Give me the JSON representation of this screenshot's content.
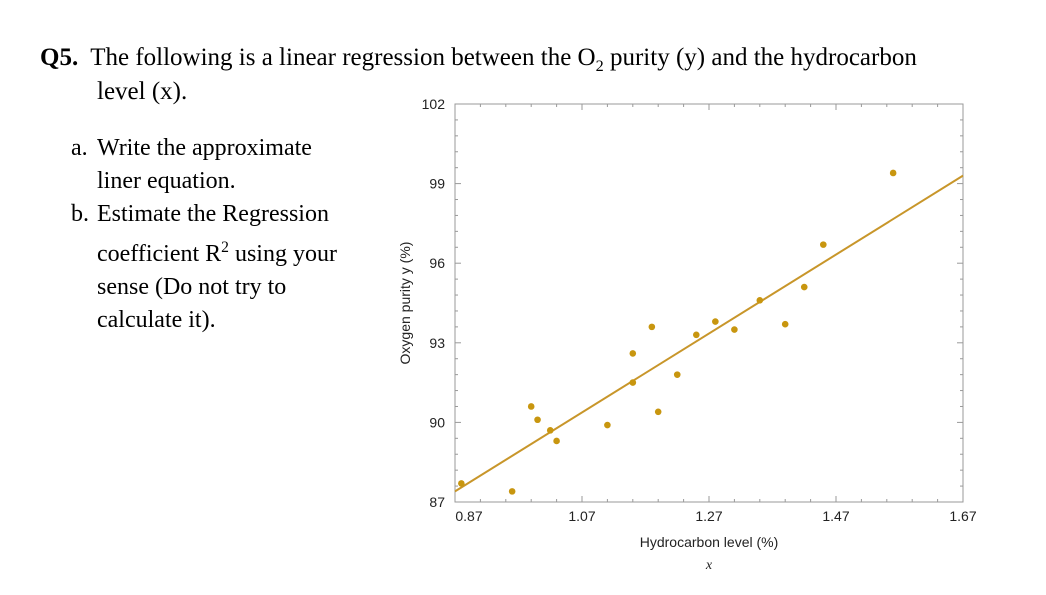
{
  "question": {
    "number": "Q5.",
    "line1_pre": "The following is a linear regression between the O",
    "line1_sub": "2",
    "line1_post": " purity (y) and the hydrocarbon",
    "line2": "level (x).",
    "items": [
      {
        "marker": "a.",
        "lines": [
          "Write the approximate",
          "liner equation."
        ]
      },
      {
        "marker": "b.",
        "line1": "Estimate the Regression",
        "line2_pre": "coefficient R",
        "line2_sup": "2",
        "line2_post": " using your",
        "line3": "sense (Do not try to",
        "line4": "calculate it)."
      }
    ]
  },
  "chart_data": {
    "type": "scatter",
    "xlabel": "Hydrocarbon level (%)",
    "xsymbol": "x",
    "ylabel": "Oxygen purity y (%)",
    "xlim": [
      0.87,
      1.67
    ],
    "ylim": [
      87,
      102
    ],
    "xticks": [
      0.87,
      1.07,
      1.27,
      1.47,
      1.67
    ],
    "yticks": [
      87,
      90,
      93,
      96,
      99,
      102
    ],
    "xtick_labels": [
      "0.87",
      "1.07",
      "1.27",
      "1.47",
      "1.67"
    ],
    "ytick_labels": [
      "87",
      "90",
      "93",
      "96",
      "99",
      "102"
    ],
    "grid": false,
    "points": [
      [
        0.88,
        87.7
      ],
      [
        0.96,
        87.4
      ],
      [
        0.99,
        90.6
      ],
      [
        1.0,
        90.1
      ],
      [
        1.02,
        89.7
      ],
      [
        1.03,
        89.3
      ],
      [
        1.11,
        89.9
      ],
      [
        1.15,
        91.5
      ],
      [
        1.15,
        92.6
      ],
      [
        1.18,
        93.6
      ],
      [
        1.19,
        90.4
      ],
      [
        1.22,
        91.8
      ],
      [
        1.25,
        93.3
      ],
      [
        1.28,
        93.8
      ],
      [
        1.31,
        93.5
      ],
      [
        1.35,
        94.6
      ],
      [
        1.39,
        93.7
      ],
      [
        1.42,
        95.1
      ],
      [
        1.45,
        96.7
      ],
      [
        1.56,
        99.4
      ]
    ],
    "fit_line": {
      "x": [
        0.87,
        1.67
      ],
      "y": [
        87.4,
        99.3
      ]
    },
    "colors": {
      "points": "#c8960f",
      "line": "#c8962a",
      "axis": "#999999"
    }
  }
}
